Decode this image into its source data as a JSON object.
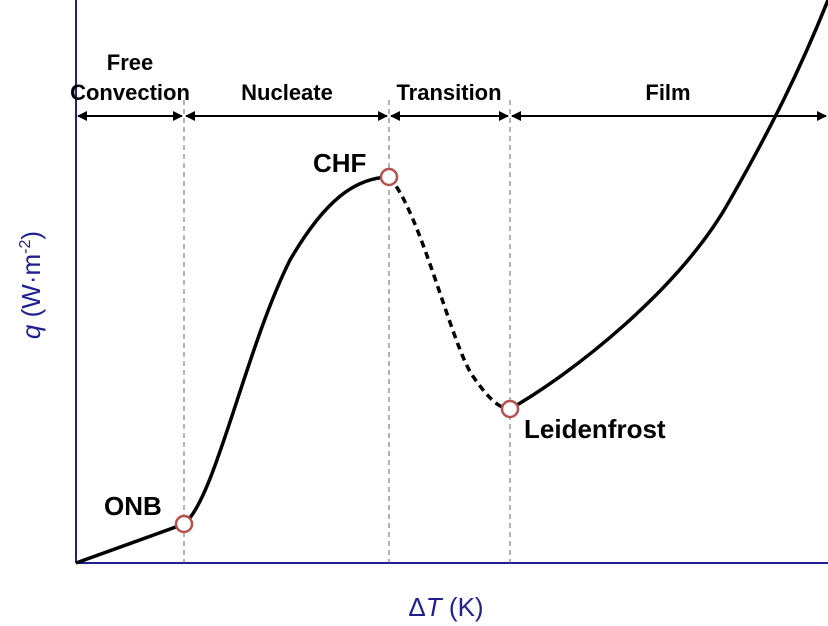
{
  "chart_data": {
    "type": "line",
    "title": "",
    "xlabel_symbol": "Δ",
    "xlabel_var": "T",
    "xlabel_unit": " (K)",
    "ylabel_var": "q",
    "ylabel_unit_pre": " (W·m",
    "ylabel_sup": "-2",
    "ylabel_unit_post": ")",
    "axis_color": "#1f1f8f",
    "curve_color": "#000000",
    "marker_edge_color": "#b5524f",
    "regions": [
      {
        "name": "free-convection",
        "label_lines": [
          "Free",
          "Convection"
        ]
      },
      {
        "name": "nucleate",
        "label_lines": [
          "Nucleate"
        ]
      },
      {
        "name": "transition",
        "label_lines": [
          "Transition"
        ]
      },
      {
        "name": "film",
        "label_lines": [
          "Film"
        ]
      }
    ],
    "points": [
      {
        "name": "onb",
        "label": "ONB"
      },
      {
        "name": "chf",
        "label": "CHF"
      },
      {
        "name": "leidenfrost",
        "label": "Leidenfrost"
      }
    ]
  }
}
